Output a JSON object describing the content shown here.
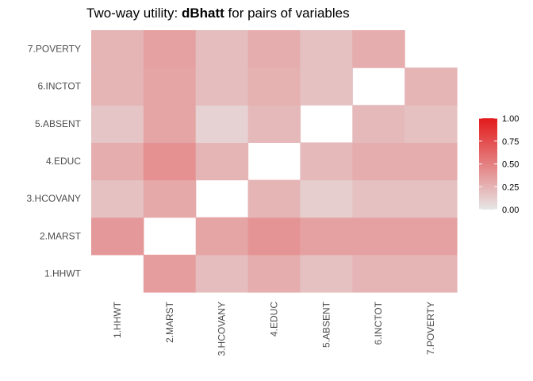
{
  "chart_data": {
    "type": "heatmap",
    "title_prefix": "Two-way utility: ",
    "title_bold": "dBhatt",
    "title_suffix": " for pairs of variables",
    "xlabel": "",
    "ylabel": "",
    "variables": [
      "1.HHWT",
      "2.MARST",
      "3.HCOVANY",
      "4.EDUC",
      "5.ABSENT",
      "6.INCTOT",
      "7.POVERTY"
    ],
    "cells": [
      {
        "x": "2.MARST",
        "y": "1.HHWT",
        "value": 0.36
      },
      {
        "x": "3.HCOVANY",
        "y": "1.HHWT",
        "value": 0.2
      },
      {
        "x": "4.EDUC",
        "y": "1.HHWT",
        "value": 0.28
      },
      {
        "x": "5.ABSENT",
        "y": "1.HHWT",
        "value": 0.18
      },
      {
        "x": "6.INCTOT",
        "y": "1.HHWT",
        "value": 0.24
      },
      {
        "x": "7.POVERTY",
        "y": "1.HHWT",
        "value": 0.24
      },
      {
        "x": "1.HHWT",
        "y": "2.MARST",
        "value": 0.38
      },
      {
        "x": "3.HCOVANY",
        "y": "2.MARST",
        "value": 0.32
      },
      {
        "x": "4.EDUC",
        "y": "2.MARST",
        "value": 0.4
      },
      {
        "x": "5.ABSENT",
        "y": "2.MARST",
        "value": 0.34
      },
      {
        "x": "6.INCTOT",
        "y": "2.MARST",
        "value": 0.34
      },
      {
        "x": "7.POVERTY",
        "y": "2.MARST",
        "value": 0.34
      },
      {
        "x": "1.HHWT",
        "y": "3.HCOVANY",
        "value": 0.18
      },
      {
        "x": "2.MARST",
        "y": "3.HCOVANY",
        "value": 0.3
      },
      {
        "x": "4.EDUC",
        "y": "3.HCOVANY",
        "value": 0.24
      },
      {
        "x": "5.ABSENT",
        "y": "3.HCOVANY",
        "value": 0.12
      },
      {
        "x": "6.INCTOT",
        "y": "3.HCOVANY",
        "value": 0.18
      },
      {
        "x": "7.POVERTY",
        "y": "3.HCOVANY",
        "value": 0.18
      },
      {
        "x": "1.HHWT",
        "y": "4.EDUC",
        "value": 0.28
      },
      {
        "x": "2.MARST",
        "y": "4.EDUC",
        "value": 0.42
      },
      {
        "x": "3.HCOVANY",
        "y": "4.EDUC",
        "value": 0.24
      },
      {
        "x": "5.ABSENT",
        "y": "4.EDUC",
        "value": 0.22
      },
      {
        "x": "6.INCTOT",
        "y": "4.EDUC",
        "value": 0.28
      },
      {
        "x": "7.POVERTY",
        "y": "4.EDUC",
        "value": 0.28
      },
      {
        "x": "1.HHWT",
        "y": "5.ABSENT",
        "value": 0.16
      },
      {
        "x": "2.MARST",
        "y": "5.ABSENT",
        "value": 0.32
      },
      {
        "x": "3.HCOVANY",
        "y": "5.ABSENT",
        "value": 0.1
      },
      {
        "x": "4.EDUC",
        "y": "5.ABSENT",
        "value": 0.22
      },
      {
        "x": "6.INCTOT",
        "y": "5.ABSENT",
        "value": 0.22
      },
      {
        "x": "7.POVERTY",
        "y": "5.ABSENT",
        "value": 0.18
      },
      {
        "x": "1.HHWT",
        "y": "6.INCTOT",
        "value": 0.24
      },
      {
        "x": "2.MARST",
        "y": "6.INCTOT",
        "value": 0.32
      },
      {
        "x": "3.HCOVANY",
        "y": "6.INCTOT",
        "value": 0.2
      },
      {
        "x": "4.EDUC",
        "y": "6.INCTOT",
        "value": 0.26
      },
      {
        "x": "5.ABSENT",
        "y": "6.INCTOT",
        "value": 0.18
      },
      {
        "x": "7.POVERTY",
        "y": "6.INCTOT",
        "value": 0.24
      },
      {
        "x": "1.HHWT",
        "y": "7.POVERTY",
        "value": 0.24
      },
      {
        "x": "2.MARST",
        "y": "7.POVERTY",
        "value": 0.34
      },
      {
        "x": "3.HCOVANY",
        "y": "7.POVERTY",
        "value": 0.2
      },
      {
        "x": "4.EDUC",
        "y": "7.POVERTY",
        "value": 0.28
      },
      {
        "x": "5.ABSENT",
        "y": "7.POVERTY",
        "value": 0.18
      },
      {
        "x": "6.INCTOT",
        "y": "7.POVERTY",
        "value": 0.28
      }
    ],
    "missing_cell_color": "#ffffff",
    "color_scale": {
      "low": "#e6e6e6",
      "high": "#e31a1c",
      "limits": [
        0,
        1
      ]
    },
    "legend": {
      "position": "right",
      "ticks": [
        1.0,
        0.75,
        0.5,
        0.25,
        0.0
      ],
      "labels": [
        "1.00",
        "0.75",
        "0.50",
        "0.25",
        "0.00"
      ]
    },
    "grid": false
  }
}
